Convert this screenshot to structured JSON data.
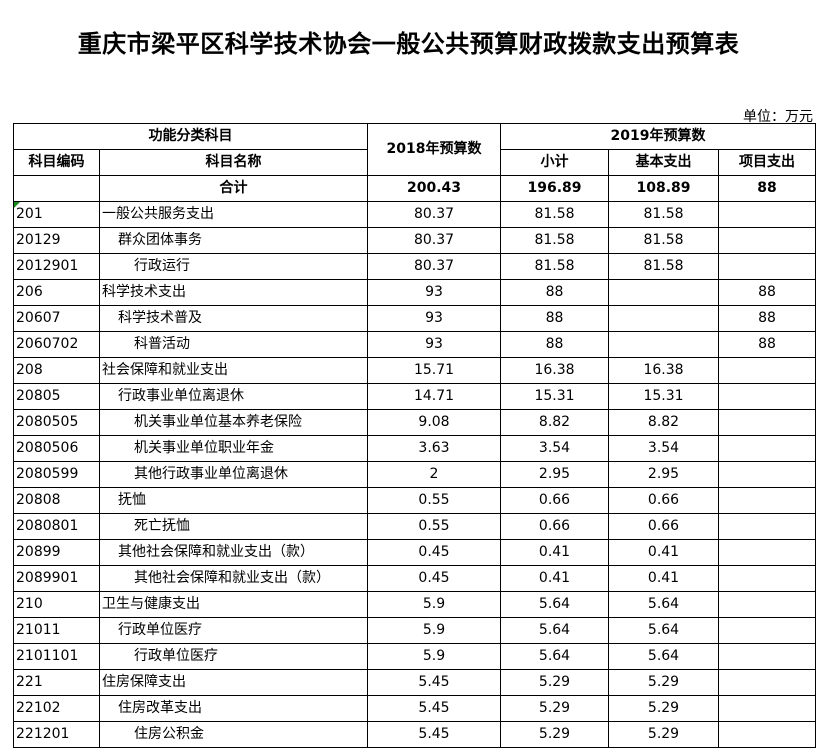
{
  "title": "重庆市梁平区科学技术协会一般公共预算财政拨款支出预算表",
  "unit": "单位：万元",
  "header": {
    "func_class": "功能分类科目",
    "y2018": "2018年预算数",
    "y2019": "2019年预算数",
    "code": "科目编码",
    "name": "科目名称",
    "subtotal": "小计",
    "basic": "基本支出",
    "project": "项目支出"
  },
  "total": {
    "label": "合计",
    "y2018": "200.43",
    "subtotal": "196.89",
    "basic": "108.89",
    "project": "88"
  },
  "rows": [
    {
      "code": "201",
      "name": "一般公共服务支出",
      "level": 1,
      "y2018": "80.37",
      "subtotal": "81.58",
      "basic": "81.58",
      "project": ""
    },
    {
      "code": "20129",
      "name": "群众团体事务",
      "level": 2,
      "y2018": "80.37",
      "subtotal": "81.58",
      "basic": "81.58",
      "project": ""
    },
    {
      "code": "2012901",
      "name": "行政运行",
      "level": 3,
      "y2018": "80.37",
      "subtotal": "81.58",
      "basic": "81.58",
      "project": ""
    },
    {
      "code": "206",
      "name": "科学技术支出",
      "level": 1,
      "y2018": "93",
      "subtotal": "88",
      "basic": "",
      "project": "88"
    },
    {
      "code": "20607",
      "name": "科学技术普及",
      "level": 2,
      "y2018": "93",
      "subtotal": "88",
      "basic": "",
      "project": "88"
    },
    {
      "code": "2060702",
      "name": "科普活动",
      "level": 3,
      "y2018": "93",
      "subtotal": "88",
      "basic": "",
      "project": "88"
    },
    {
      "code": "208",
      "name": "社会保障和就业支出",
      "level": 1,
      "y2018": "15.71",
      "subtotal": "16.38",
      "basic": "16.38",
      "project": ""
    },
    {
      "code": "20805",
      "name": "行政事业单位离退休",
      "level": 2,
      "y2018": "14.71",
      "subtotal": "15.31",
      "basic": "15.31",
      "project": ""
    },
    {
      "code": "2080505",
      "name": "机关事业单位基本养老保险",
      "level": 3,
      "y2018": "9.08",
      "subtotal": "8.82",
      "basic": "8.82",
      "project": ""
    },
    {
      "code": "2080506",
      "name": "机关事业单位职业年金",
      "level": 3,
      "y2018": "3.63",
      "subtotal": "3.54",
      "basic": "3.54",
      "project": ""
    },
    {
      "code": "2080599",
      "name": "其他行政事业单位离退休",
      "level": 3,
      "y2018": "2",
      "subtotal": "2.95",
      "basic": "2.95",
      "project": ""
    },
    {
      "code": "20808",
      "name": "抚恤",
      "level": 2,
      "y2018": "0.55",
      "subtotal": "0.66",
      "basic": "0.66",
      "project": ""
    },
    {
      "code": "2080801",
      "name": "死亡抚恤",
      "level": 3,
      "y2018": "0.55",
      "subtotal": "0.66",
      "basic": "0.66",
      "project": ""
    },
    {
      "code": "20899",
      "name": "其他社会保障和就业支出（款）",
      "level": 2,
      "y2018": "0.45",
      "subtotal": "0.41",
      "basic": "0.41",
      "project": ""
    },
    {
      "code": "2089901",
      "name": "其他社会保障和就业支出（款）",
      "level": 3,
      "y2018": "0.45",
      "subtotal": "0.41",
      "basic": "0.41",
      "project": ""
    },
    {
      "code": "210",
      "name": "卫生与健康支出",
      "level": 1,
      "y2018": "5.9",
      "subtotal": "5.64",
      "basic": "5.64",
      "project": ""
    },
    {
      "code": "21011",
      "name": "行政单位医疗",
      "level": 2,
      "y2018": "5.9",
      "subtotal": "5.64",
      "basic": "5.64",
      "project": ""
    },
    {
      "code": "2101101",
      "name": "行政单位医疗",
      "level": 3,
      "y2018": "5.9",
      "subtotal": "5.64",
      "basic": "5.64",
      "project": ""
    },
    {
      "code": "221",
      "name": "住房保障支出",
      "level": 1,
      "y2018": "5.45",
      "subtotal": "5.29",
      "basic": "5.29",
      "project": ""
    },
    {
      "code": "22102",
      "name": "住房改革支出",
      "level": 2,
      "y2018": "5.45",
      "subtotal": "5.29",
      "basic": "5.29",
      "project": ""
    },
    {
      "code": "221201",
      "name": "住房公积金",
      "level": 3,
      "y2018": "5.45",
      "subtotal": "5.29",
      "basic": "5.29",
      "project": ""
    }
  ]
}
